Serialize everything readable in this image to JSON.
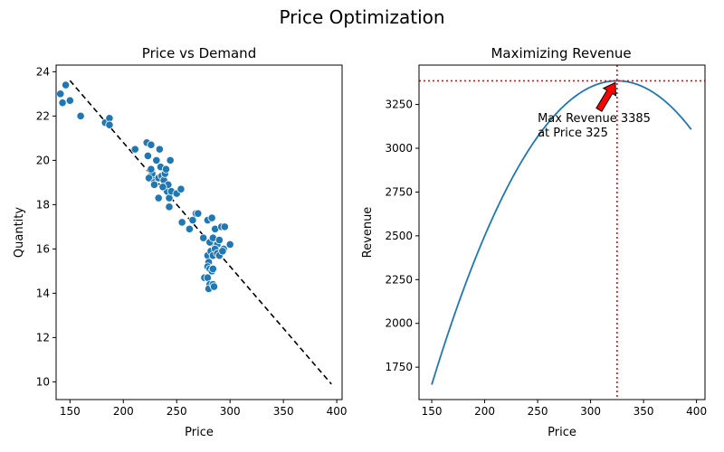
{
  "suptitle": "Price Optimization",
  "chart_data": [
    {
      "type": "scatter",
      "title": "Price vs Demand",
      "xlabel": "Price",
      "ylabel": "Quantity",
      "xlim": [
        137,
        405
      ],
      "ylim": [
        9.2,
        24.3
      ],
      "xticks": [
        150,
        200,
        250,
        300,
        350,
        400
      ],
      "yticks": [
        10,
        12,
        14,
        16,
        18,
        20,
        22,
        24
      ],
      "point_color": "#1f77b4",
      "points": [
        [
          141,
          23.0
        ],
        [
          143,
          22.6
        ],
        [
          146,
          23.4
        ],
        [
          150,
          22.7
        ],
        [
          160,
          22.0
        ],
        [
          183,
          21.7
        ],
        [
          187,
          21.9
        ],
        [
          187,
          21.6
        ],
        [
          211,
          20.5
        ],
        [
          222,
          20.8
        ],
        [
          223,
          20.2
        ],
        [
          226,
          20.7
        ],
        [
          227,
          19.4
        ],
        [
          224,
          19.2
        ],
        [
          226,
          19.6
        ],
        [
          229,
          19.0
        ],
        [
          231,
          20.0
        ],
        [
          233,
          18.3
        ],
        [
          234,
          20.5
        ],
        [
          233,
          19.2
        ],
        [
          235,
          19.7
        ],
        [
          236,
          19.3
        ],
        [
          238,
          19.1
        ],
        [
          239,
          19.4
        ],
        [
          240,
          19.6
        ],
        [
          241,
          18.6
        ],
        [
          242,
          18.9
        ],
        [
          243,
          18.3
        ],
        [
          244,
          20.0
        ],
        [
          245,
          18.6
        ],
        [
          229,
          18.9
        ],
        [
          237,
          18.8
        ],
        [
          243,
          17.9
        ],
        [
          250,
          18.5
        ],
        [
          254,
          18.7
        ],
        [
          255,
          17.2
        ],
        [
          262,
          16.9
        ],
        [
          265,
          17.3
        ],
        [
          268,
          17.6
        ],
        [
          270,
          17.6
        ],
        [
          275,
          16.5
        ],
        [
          279,
          17.3
        ],
        [
          281,
          16.3
        ],
        [
          283,
          17.4
        ],
        [
          284,
          16.5
        ],
        [
          286,
          16.9
        ],
        [
          288,
          16.2
        ],
        [
          290,
          16.4
        ],
        [
          292,
          17.0
        ],
        [
          294,
          16.0
        ],
        [
          295,
          17.0
        ],
        [
          300,
          16.2
        ],
        [
          279,
          15.7
        ],
        [
          280,
          15.4
        ],
        [
          282,
          15.9
        ],
        [
          284,
          15.7
        ],
        [
          286,
          16.0
        ],
        [
          288,
          15.8
        ],
        [
          290,
          15.7
        ],
        [
          293,
          15.9
        ],
        [
          279,
          15.2
        ],
        [
          281,
          15.1
        ],
        [
          283,
          15.0
        ],
        [
          284,
          15.1
        ],
        [
          276,
          14.7
        ],
        [
          279,
          14.7
        ],
        [
          281,
          14.4
        ],
        [
          280,
          14.2
        ],
        [
          284,
          14.4
        ],
        [
          285,
          14.3
        ]
      ],
      "trendline": {
        "x": [
          150,
          395
        ],
        "y": [
          23.6,
          9.9
        ],
        "color": "#000000",
        "style": "dashed"
      }
    },
    {
      "type": "line",
      "title": "Maximizing Revenue",
      "xlabel": "Price",
      "ylabel": "Revenue",
      "xlim": [
        138,
        408
      ],
      "ylim": [
        1565,
        3475
      ],
      "xticks": [
        150,
        200,
        250,
        300,
        350,
        400
      ],
      "yticks": [
        1750,
        2000,
        2250,
        2500,
        2750,
        3000,
        3250
      ],
      "line_color": "#1f77b4",
      "curve": {
        "x_start": 150,
        "x_end": 395,
        "peak_x": 325,
        "peak_y": 3385,
        "y_at_start": 1650
      },
      "max_marker": {
        "x": 325,
        "y": 3385,
        "color": "#ff0000",
        "style": "dotted"
      },
      "annotation": {
        "lines": [
          "Max Revenue 3385",
          "at Price 325"
        ],
        "text_x": 250,
        "text_y": 3150,
        "arrow_color": "#ff0000"
      }
    }
  ]
}
